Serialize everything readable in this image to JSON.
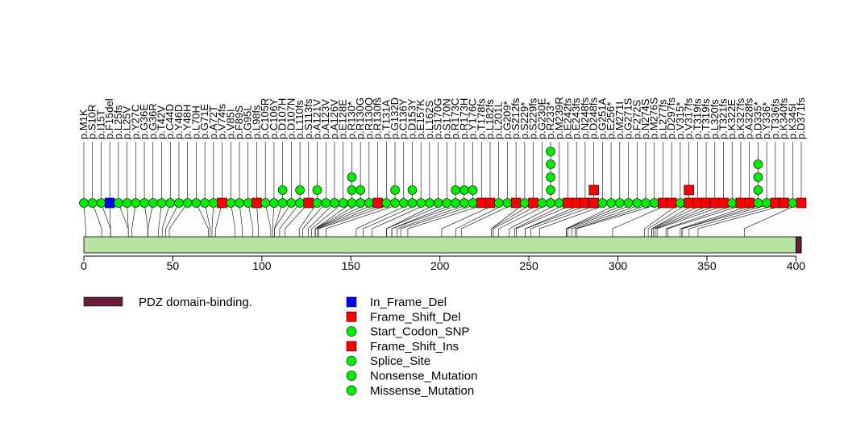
{
  "chart_data": {
    "type": "lollipop",
    "protein_length": 403,
    "axis": {
      "xlim": [
        0,
        403
      ],
      "ticks": [
        0,
        50,
        100,
        150,
        200,
        250,
        300,
        350,
        400
      ]
    },
    "domains": [
      {
        "name": "PDZ domain-binding.",
        "start": 400,
        "end": 403,
        "color": "#6b1c3c"
      }
    ],
    "legend_domains": [
      {
        "label": "PDZ domain-binding.",
        "color": "#6b1c3c"
      }
    ],
    "legend_mutations": [
      {
        "label": "In_Frame_Del",
        "shape": "square",
        "color": "#0000ff"
      },
      {
        "label": "Frame_Shift_Del",
        "shape": "square",
        "color": "#ff0000"
      },
      {
        "label": "Start_Codon_SNP",
        "shape": "circle",
        "color": "#00ee00"
      },
      {
        "label": "Frame_Shift_Ins",
        "shape": "square",
        "color": "#ff0000"
      },
      {
        "label": "Splice_Site",
        "shape": "circle",
        "color": "#00ee00"
      },
      {
        "label": "Nonsense_Mutation",
        "shape": "circle",
        "color": "#00ee00"
      },
      {
        "label": "Missense_Mutation",
        "shape": "circle",
        "color": "#00ee00"
      }
    ],
    "mutations": [
      {
        "label": "p.M1K",
        "pos": 1,
        "type": "Missense_Mutation",
        "count": 1
      },
      {
        "label": "p.S10R",
        "pos": 10,
        "type": "Missense_Mutation",
        "count": 1
      },
      {
        "label": "p.I15T",
        "pos": 15,
        "type": "Missense_Mutation",
        "count": 1
      },
      {
        "label": "p.F15del",
        "pos": 15,
        "type": "In_Frame_Del",
        "count": 1
      },
      {
        "label": "p.L25fs",
        "pos": 25,
        "type": "Missense_Mutation",
        "count": 1
      },
      {
        "label": "p.L25V",
        "pos": 25,
        "type": "Missense_Mutation",
        "count": 1
      },
      {
        "label": "p.Y27C",
        "pos": 27,
        "type": "Missense_Mutation",
        "count": 1
      },
      {
        "label": "p.G36E",
        "pos": 36,
        "type": "Missense_Mutation",
        "count": 1
      },
      {
        "label": "p.G36R",
        "pos": 36,
        "type": "Missense_Mutation",
        "count": 1
      },
      {
        "label": "p.T42V",
        "pos": 42,
        "type": "Missense_Mutation",
        "count": 1
      },
      {
        "label": "p.C44D",
        "pos": 44,
        "type": "Missense_Mutation",
        "count": 1
      },
      {
        "label": "p.Y46D",
        "pos": 46,
        "type": "Missense_Mutation",
        "count": 1
      },
      {
        "label": "p.Y48H",
        "pos": 48,
        "type": "Missense_Mutation",
        "count": 1
      },
      {
        "label": "p.L70H",
        "pos": 70,
        "type": "Missense_Mutation",
        "count": 1
      },
      {
        "label": "p.G71E",
        "pos": 71,
        "type": "Missense_Mutation",
        "count": 1
      },
      {
        "label": "p.A72T",
        "pos": 72,
        "type": "Missense_Mutation",
        "count": 1
      },
      {
        "label": "p.V74fs",
        "pos": 74,
        "type": "Frame_Shift_Del",
        "count": 1
      },
      {
        "label": "p.V85I",
        "pos": 85,
        "type": "Missense_Mutation",
        "count": 1
      },
      {
        "label": "p.F89S",
        "pos": 89,
        "type": "Missense_Mutation",
        "count": 1
      },
      {
        "label": "p.G95L",
        "pos": 95,
        "type": "Missense_Mutation",
        "count": 1
      },
      {
        "label": "p.L98fs",
        "pos": 98,
        "type": "Frame_Shift_Del",
        "count": 1
      },
      {
        "label": "p.C105R",
        "pos": 105,
        "type": "Missense_Mutation",
        "count": 1
      },
      {
        "label": "p.C106Y",
        "pos": 106,
        "type": "Missense_Mutation",
        "count": 1
      },
      {
        "label": "p.D107H",
        "pos": 107,
        "type": "Missense_Mutation",
        "count": 2
      },
      {
        "label": "p.D107N",
        "pos": 107,
        "type": "Missense_Mutation",
        "count": 1
      },
      {
        "label": "p.L110fs",
        "pos": 110,
        "type": "Missense_Mutation",
        "count": 2
      },
      {
        "label": "p.S113fs",
        "pos": 113,
        "type": "Frame_Shift_Del",
        "count": 1
      },
      {
        "label": "p.A121V",
        "pos": 121,
        "type": "Missense_Mutation",
        "count": 2
      },
      {
        "label": "p.A123V",
        "pos": 123,
        "type": "Missense_Mutation",
        "count": 1
      },
      {
        "label": "p.A126V",
        "pos": 126,
        "type": "Missense_Mutation",
        "count": 1
      },
      {
        "label": "p.E128E",
        "pos": 128,
        "type": "Missense_Mutation",
        "count": 1
      },
      {
        "label": "p.R130*",
        "pos": 130,
        "type": "Nonsense_Mutation",
        "count": 3
      },
      {
        "label": "p.R130G",
        "pos": 130,
        "type": "Missense_Mutation",
        "count": 2
      },
      {
        "label": "p.R130Q",
        "pos": 130,
        "type": "Missense_Mutation",
        "count": 1
      },
      {
        "label": "p.R130fs",
        "pos": 130,
        "type": "Frame_Shift_Del",
        "count": 1
      },
      {
        "label": "p.T131A",
        "pos": 131,
        "type": "Missense_Mutation",
        "count": 1
      },
      {
        "label": "p.G132D",
        "pos": 132,
        "type": "Missense_Mutation",
        "count": 2
      },
      {
        "label": "p.C136Y",
        "pos": 136,
        "type": "Missense_Mutation",
        "count": 1
      },
      {
        "label": "p.D153Y",
        "pos": 153,
        "type": "Missense_Mutation",
        "count": 2
      },
      {
        "label": "p.E157K",
        "pos": 157,
        "type": "Missense_Mutation",
        "count": 1
      },
      {
        "label": "p.L162S",
        "pos": 162,
        "type": "Missense_Mutation",
        "count": 1
      },
      {
        "label": "p.S170G",
        "pos": 170,
        "type": "Missense_Mutation",
        "count": 1
      },
      {
        "label": "p.S170N",
        "pos": 170,
        "type": "Missense_Mutation",
        "count": 1
      },
      {
        "label": "p.R173C",
        "pos": 173,
        "type": "Missense_Mutation",
        "count": 2
      },
      {
        "label": "p.R173H",
        "pos": 173,
        "type": "Missense_Mutation",
        "count": 2
      },
      {
        "label": "p.Y176C",
        "pos": 176,
        "type": "Missense_Mutation",
        "count": 2
      },
      {
        "label": "p.T178fs",
        "pos": 178,
        "type": "Frame_Shift_Del",
        "count": 1
      },
      {
        "label": "p.L182fs",
        "pos": 182,
        "type": "Frame_Shift_Del",
        "count": 1
      },
      {
        "label": "p.L201L",
        "pos": 201,
        "type": "Missense_Mutation",
        "count": 1
      },
      {
        "label": "p.G209*",
        "pos": 209,
        "type": "Nonsense_Mutation",
        "count": 1
      },
      {
        "label": "p.S212fs",
        "pos": 212,
        "type": "Frame_Shift_Del",
        "count": 1
      },
      {
        "label": "p.S229*",
        "pos": 229,
        "type": "Nonsense_Mutation",
        "count": 1
      },
      {
        "label": "p.S229fs",
        "pos": 229,
        "type": "Frame_Shift_Del",
        "count": 1
      },
      {
        "label": "p.G230E",
        "pos": 230,
        "type": "Missense_Mutation",
        "count": 1
      },
      {
        "label": "p.R233*",
        "pos": 233,
        "type": "Nonsense_Mutation",
        "count": 5
      },
      {
        "label": "p.M239R",
        "pos": 239,
        "type": "Missense_Mutation",
        "count": 1
      },
      {
        "label": "p.E242fs",
        "pos": 242,
        "type": "Frame_Shift_Del",
        "count": 1
      },
      {
        "label": "p.E243fs",
        "pos": 243,
        "type": "Frame_Shift_Del",
        "count": 1
      },
      {
        "label": "p.N248fs",
        "pos": 248,
        "type": "Frame_Shift_Del",
        "count": 1
      },
      {
        "label": "p.D248fs",
        "pos": 248,
        "type": "Frame_Shift_Ins",
        "count": 2
      },
      {
        "label": "p.G251A",
        "pos": 251,
        "type": "Missense_Mutation",
        "count": 1
      },
      {
        "label": "p.E256*",
        "pos": 256,
        "type": "Nonsense_Mutation",
        "count": 1
      },
      {
        "label": "p.M271I",
        "pos": 271,
        "type": "Missense_Mutation",
        "count": 1
      },
      {
        "label": "p.G271S",
        "pos": 271,
        "type": "Missense_Mutation",
        "count": 1
      },
      {
        "label": "p.F272S",
        "pos": 272,
        "type": "Missense_Mutation",
        "count": 1
      },
      {
        "label": "p.N274S",
        "pos": 274,
        "type": "Missense_Mutation",
        "count": 1
      },
      {
        "label": "p.M276S",
        "pos": 276,
        "type": "Missense_Mutation",
        "count": 1
      },
      {
        "label": "p.L277fs",
        "pos": 277,
        "type": "Frame_Shift_Del",
        "count": 1
      },
      {
        "label": "p.D297fs",
        "pos": 297,
        "type": "Frame_Shift_Del",
        "count": 1
      },
      {
        "label": "p.V315*",
        "pos": 315,
        "type": "Nonsense_Mutation",
        "count": 1
      },
      {
        "label": "p.V317fs",
        "pos": 317,
        "type": "Frame_Shift_Del",
        "count": 2
      },
      {
        "label": "p.T319fs",
        "pos": 319,
        "type": "Frame_Shift_Del",
        "count": 1
      },
      {
        "label": "p.T319fs",
        "pos": 319,
        "type": "Frame_Shift_Ins",
        "count": 1
      },
      {
        "label": "p.L320fs",
        "pos": 320,
        "type": "Frame_Shift_Del",
        "count": 1
      },
      {
        "label": "p.T321fs",
        "pos": 321,
        "type": "Frame_Shift_Del",
        "count": 1
      },
      {
        "label": "p.K322E",
        "pos": 322,
        "type": "Missense_Mutation",
        "count": 1
      },
      {
        "label": "p.K327fs",
        "pos": 327,
        "type": "Frame_Shift_Del",
        "count": 1
      },
      {
        "label": "p.A328fs",
        "pos": 328,
        "type": "Frame_Shift_Del",
        "count": 1
      },
      {
        "label": "p.D335*",
        "pos": 335,
        "type": "Nonsense_Mutation",
        "count": 4
      },
      {
        "label": "p.Y336*",
        "pos": 336,
        "type": "Nonsense_Mutation",
        "count": 1
      },
      {
        "label": "p.T336fs",
        "pos": 336,
        "type": "Frame_Shift_Del",
        "count": 1
      },
      {
        "label": "p.K340fs",
        "pos": 340,
        "type": "Frame_Shift_Del",
        "count": 1
      },
      {
        "label": "p.K345I",
        "pos": 345,
        "type": "Missense_Mutation",
        "count": 1
      },
      {
        "label": "p.D371fs",
        "pos": 371,
        "type": "Frame_Shift_Del",
        "count": 1
      }
    ]
  }
}
